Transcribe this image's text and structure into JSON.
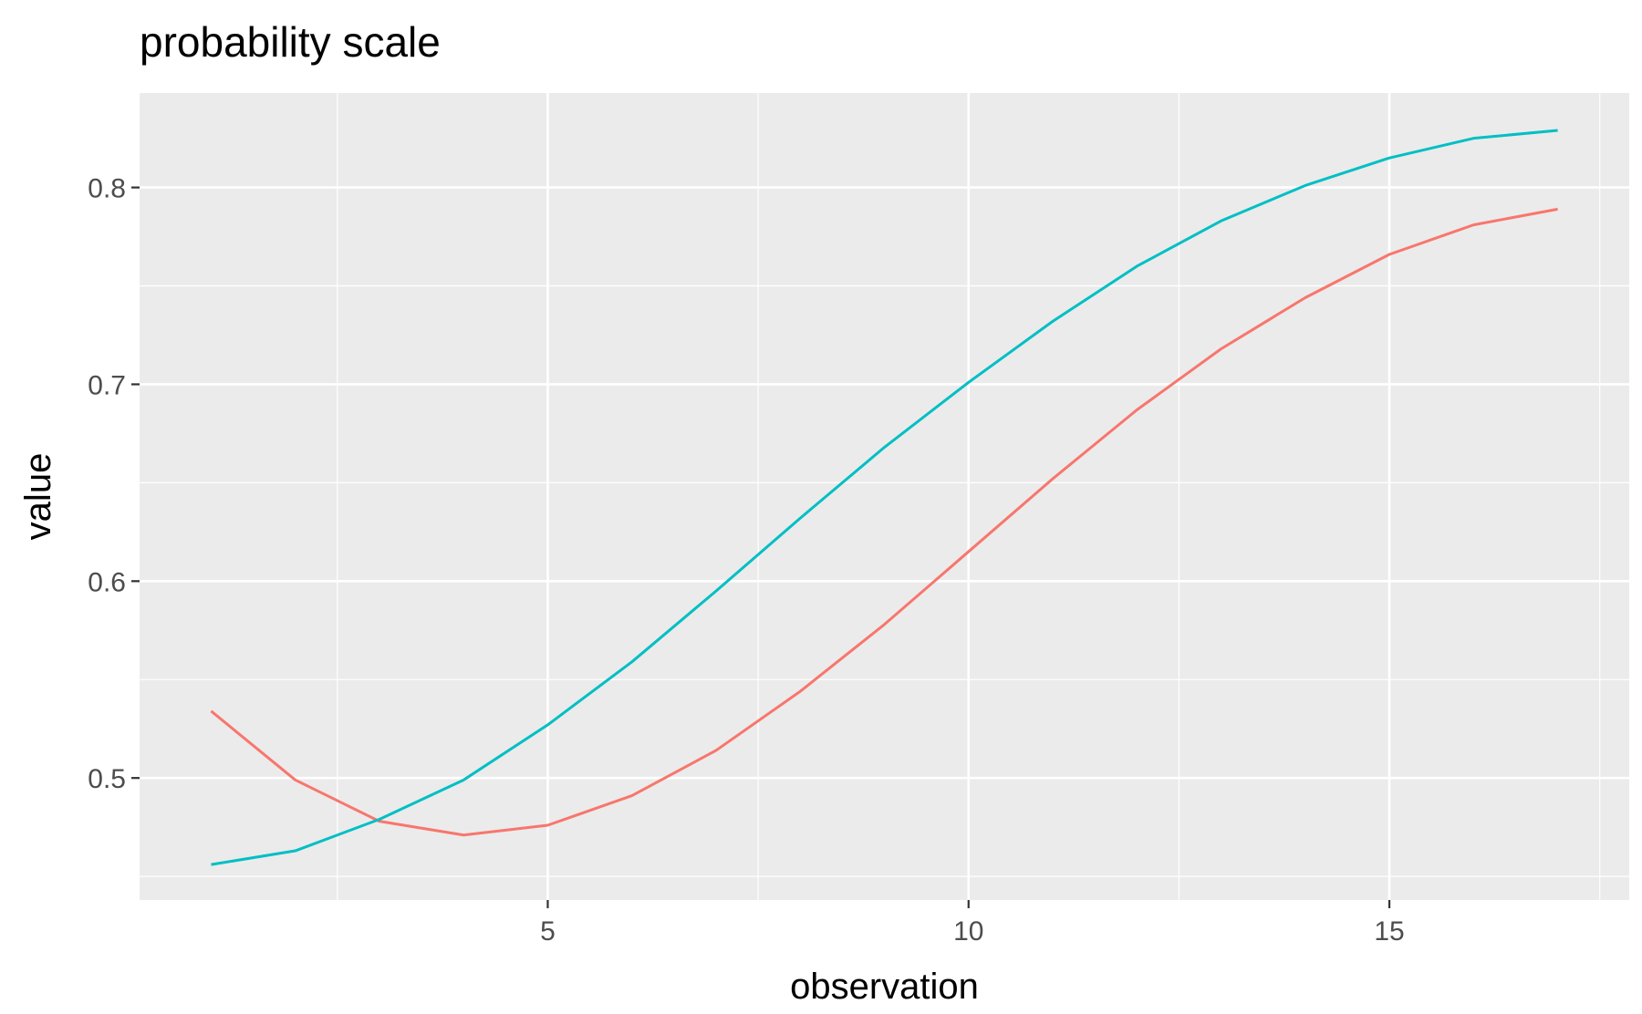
{
  "chart_data": {
    "type": "line",
    "title": "probability scale",
    "xlabel": "observation",
    "ylabel": "value",
    "xlim": [
      0.15,
      17.85
    ],
    "ylim": [
      0.438,
      0.848
    ],
    "x_ticks": [
      5,
      10,
      15
    ],
    "x_tick_labels": [
      "5",
      "10",
      "15"
    ],
    "x_minor_ticks": [
      2.5,
      7.5,
      12.5,
      17.5
    ],
    "y_ticks": [
      0.5,
      0.6,
      0.7,
      0.8
    ],
    "y_tick_labels": [
      "0.5",
      "0.6",
      "0.7",
      "0.8"
    ],
    "y_minor_ticks": [
      0.45,
      0.55,
      0.65,
      0.75
    ],
    "grid": true,
    "legend": "none",
    "panel_background": "#ebebeb",
    "grid_color": "#ffffff",
    "x": [
      1,
      2,
      3,
      4,
      5,
      6,
      7,
      8,
      9,
      10,
      11,
      12,
      13,
      14,
      15,
      16,
      17
    ],
    "series": [
      {
        "color": "#f8766d",
        "values": [
          0.534,
          0.499,
          0.478,
          0.471,
          0.476,
          0.491,
          0.514,
          0.544,
          0.578,
          0.615,
          0.652,
          0.687,
          0.718,
          0.744,
          0.766,
          0.781,
          0.789
        ]
      },
      {
        "color": "#00bfc4",
        "values": [
          0.456,
          0.463,
          0.479,
          0.499,
          0.527,
          0.559,
          0.595,
          0.632,
          0.668,
          0.701,
          0.732,
          0.76,
          0.783,
          0.801,
          0.815,
          0.825,
          0.829
        ]
      }
    ]
  }
}
